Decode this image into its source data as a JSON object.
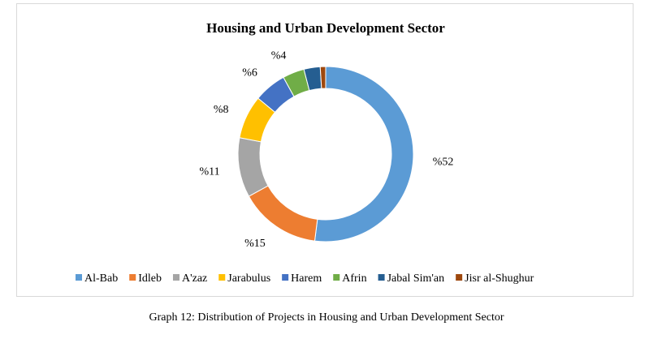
{
  "caption": "Graph 12: Distribution of Projects in Housing and Urban Development Sector",
  "chart_data": {
    "type": "pie",
    "subtype": "doughnut",
    "title": "Housing and Urban Development Sector",
    "legend_position": "bottom",
    "categories": [
      "Al-Bab",
      "Idleb",
      "A'zaz",
      "Jarabulus",
      "Harem",
      "Afrin",
      "Jabal Sim'an",
      "Jisr al-Shughur"
    ],
    "values": [
      52,
      15,
      11,
      8,
      6,
      4,
      3,
      1
    ],
    "data_labels": [
      "%52",
      "%15",
      "%11",
      "%8",
      "%6",
      "%4",
      "",
      ""
    ],
    "colors": [
      "#5b9bd5",
      "#ed7d31",
      "#a5a5a5",
      "#ffc000",
      "#4472c4",
      "#70ad47",
      "#255e91",
      "#9e480e"
    ]
  }
}
